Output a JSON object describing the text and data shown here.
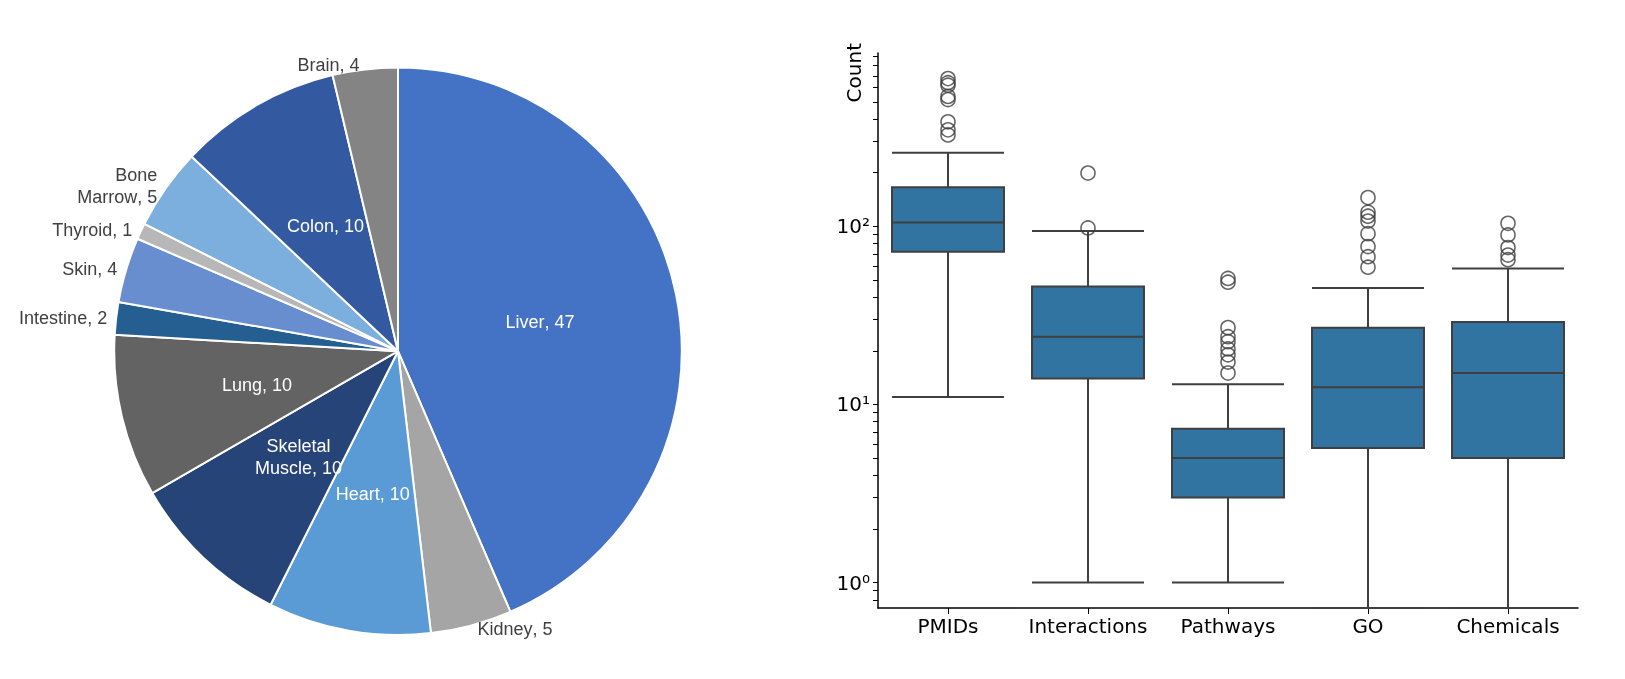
{
  "chart_data": [
    {
      "type": "pie",
      "categories": [
        "Liver",
        "Kidney",
        "Heart",
        "Skeletal Muscle",
        "Lung",
        "Intestine",
        "Skin",
        "Thyroid",
        "Bone Marrow",
        "Colon",
        "Brain"
      ],
      "values": [
        47,
        5,
        10,
        10,
        10,
        2,
        4,
        1,
        5,
        10,
        4
      ],
      "colors": [
        "#4472c4",
        "#a5a5a5",
        "#5b9bd5",
        "#264478",
        "#636363",
        "#255e91",
        "#698ed0",
        "#b7b7b7",
        "#7cafdd",
        "#335aa1",
        "#848484"
      ],
      "value_labels": [
        ", 47",
        ", 5",
        ", 10",
        ", 10",
        ", 10",
        ", 2",
        ", 4",
        ", 1",
        ", 5",
        ", 10",
        ", 4"
      ]
    },
    {
      "type": "box",
      "ylabel": "Count",
      "categories": [
        "PMIDs",
        "Interactions",
        "Pathways",
        "GO",
        "Chemicals"
      ],
      "log": "y",
      "ylim": [
        0.72,
        940
      ],
      "yticks": [
        {
          "value": 0.8,
          "label": null
        },
        {
          "value": 0.9,
          "label": null
        },
        {
          "value": 1,
          "label": "10⁰"
        },
        {
          "value": 2,
          "label": null
        },
        {
          "value": 3,
          "label": null
        },
        {
          "value": 4,
          "label": null
        },
        {
          "value": 5,
          "label": null
        },
        {
          "value": 6,
          "label": null
        },
        {
          "value": 7,
          "label": null
        },
        {
          "value": 8,
          "label": null
        },
        {
          "value": 9,
          "label": null
        },
        {
          "value": 10,
          "label": "10¹"
        },
        {
          "value": 20,
          "label": null
        },
        {
          "value": 30,
          "label": null
        },
        {
          "value": 40,
          "label": null
        },
        {
          "value": 50,
          "label": null
        },
        {
          "value": 60,
          "label": null
        },
        {
          "value": 70,
          "label": null
        },
        {
          "value": 80,
          "label": null
        },
        {
          "value": 90,
          "label": null
        },
        {
          "value": 100,
          "label": "10²"
        },
        {
          "value": 200,
          "label": null
        },
        {
          "value": 300,
          "label": null
        },
        {
          "value": 400,
          "label": null
        },
        {
          "value": 500,
          "label": null
        },
        {
          "value": 600,
          "label": null
        },
        {
          "value": 700,
          "label": null
        },
        {
          "value": 800,
          "label": null
        },
        {
          "value": 900,
          "label": null
        }
      ],
      "grid": false,
      "color": "#3274a1",
      "boxes": [
        {
          "low": 11,
          "q1": 72,
          "median": 105,
          "q3": 166,
          "high": 259,
          "outliers": [
            675,
            640,
            620,
            536,
            515,
            386,
            348,
            326
          ]
        },
        {
          "low": 1,
          "q1": 14,
          "median": 24,
          "q3": 46,
          "high": 94,
          "outliers": [
            199,
            98
          ]
        },
        {
          "low": 1,
          "q1": 3,
          "median": 5,
          "q3": 7.3,
          "high": 13,
          "outliers": [
            51,
            48.6,
            27,
            24,
            22.5,
            20.5,
            19,
            17.3,
            15
          ]
        },
        {
          "low": 0.72,
          "q1": 5.7,
          "median": 12.5,
          "q3": 27,
          "high": 45,
          "outliers": [
            145,
            120,
            114,
            107,
            91,
            77,
            67.5,
            59
          ]
        },
        {
          "low": 0.72,
          "q1": 5,
          "median": 15,
          "q3": 29,
          "high": 58,
          "outliers": [
            104,
            89.5,
            76,
            69,
            65
          ]
        }
      ]
    }
  ]
}
